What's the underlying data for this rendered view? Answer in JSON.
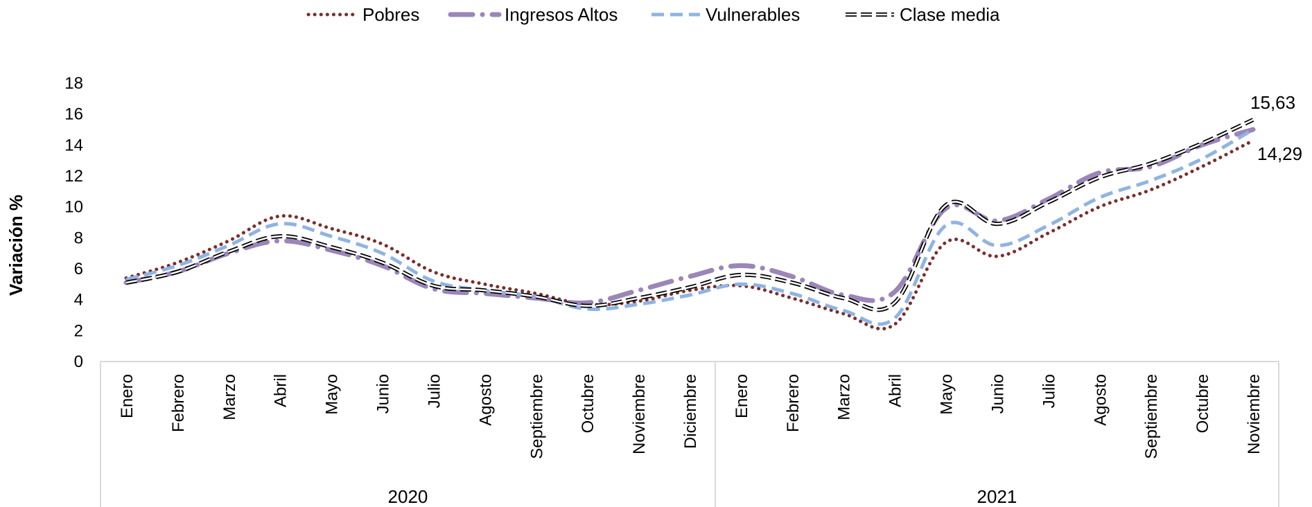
{
  "chart_data": {
    "type": "line",
    "title": "",
    "xlabel": "",
    "ylabel": "Variación  %",
    "ylim": [
      0,
      18
    ],
    "yticks": [
      "0",
      "2",
      "4",
      "6",
      "8",
      "10",
      "12",
      "14",
      "16",
      "18"
    ],
    "grid": false,
    "legend_position": "top",
    "categories": [
      "Enero",
      "Febrero",
      "Marzo",
      "Abril",
      "Mayo",
      "Junio",
      "Julio",
      "Agosto",
      "Septiembre",
      "Octubre",
      "Noviembre",
      "Diciembre",
      "Enero",
      "Febrero",
      "Marzo",
      "Abril",
      "Mayo",
      "Junio",
      "Julio",
      "Agosto",
      "Septiembre",
      "Octubre",
      "Noviembre"
    ],
    "year_groups": [
      {
        "label": "2020",
        "count": 12
      },
      {
        "label": "2021",
        "count": 11
      }
    ],
    "series": [
      {
        "name": "Pobres",
        "color": "#7b2d2d",
        "style": "dotted",
        "values": [
          5.4,
          6.4,
          7.8,
          9.4,
          8.6,
          7.6,
          5.8,
          5.0,
          4.4,
          3.7,
          3.9,
          4.6,
          4.9,
          4.1,
          3.1,
          2.4,
          7.7,
          6.8,
          8.3,
          10.0,
          11.1,
          12.6,
          14.29
        ]
      },
      {
        "name": "Ingresos Altos",
        "color": "#9b86b8",
        "style": "dashdot",
        "values": [
          5.1,
          5.8,
          7.0,
          7.8,
          7.2,
          6.2,
          4.7,
          4.4,
          4.1,
          3.8,
          4.6,
          5.5,
          6.2,
          5.5,
          4.3,
          4.5,
          9.9,
          9.1,
          10.5,
          12.2,
          12.6,
          14.0,
          15.0
        ]
      },
      {
        "name": "Vulnerables",
        "color": "#8fb4e3",
        "style": "dashed",
        "values": [
          5.3,
          6.2,
          7.5,
          8.9,
          8.1,
          7.0,
          5.2,
          4.6,
          4.2,
          3.4,
          3.7,
          4.3,
          5.0,
          4.4,
          3.3,
          2.8,
          8.8,
          7.5,
          8.8,
          10.6,
          11.7,
          13.1,
          15.0
        ]
      },
      {
        "name": "Clase media",
        "color": "#000000",
        "style": "hollow-dash",
        "values": [
          5.1,
          5.8,
          7.1,
          8.1,
          7.4,
          6.4,
          4.9,
          4.6,
          4.2,
          3.6,
          4.1,
          4.8,
          5.6,
          5.1,
          4.1,
          3.8,
          10.1,
          8.9,
          10.3,
          11.9,
          12.8,
          14.1,
          15.63
        ]
      }
    ],
    "annotations": [
      {
        "text": "15,63",
        "series": "Clase media"
      },
      {
        "text": "14,29",
        "series": "Pobres"
      }
    ]
  }
}
